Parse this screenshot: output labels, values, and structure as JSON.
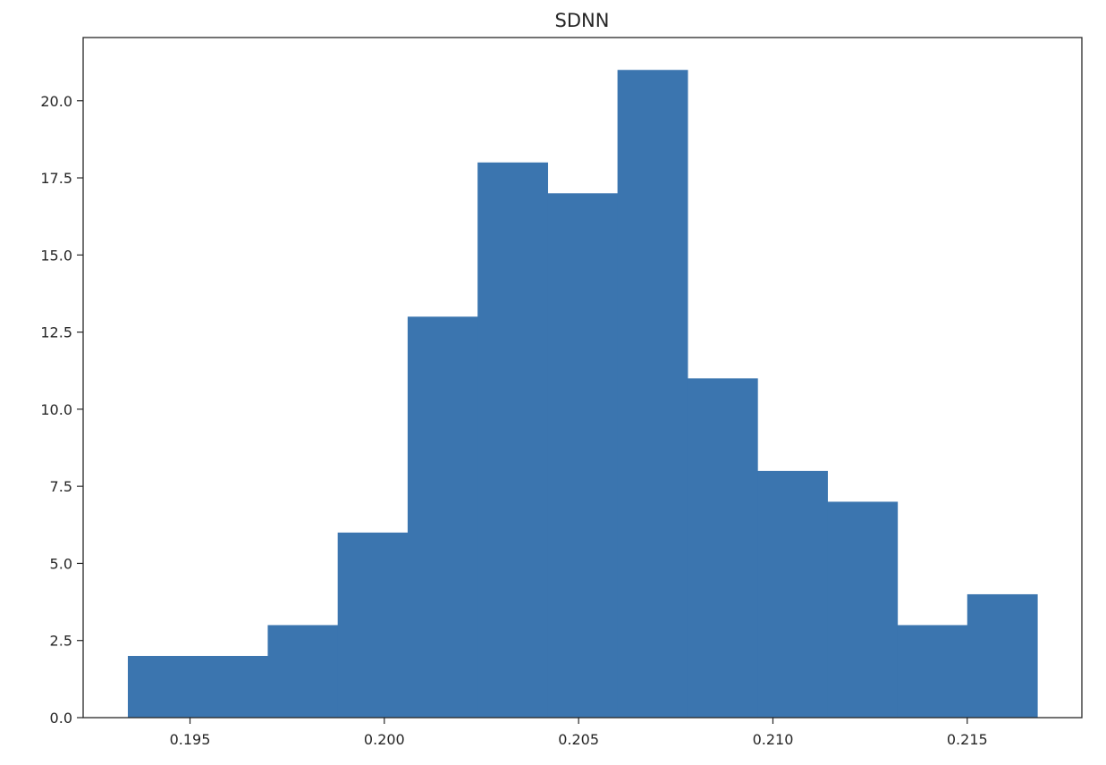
{
  "chart_data": {
    "type": "bar",
    "title": "SDNN",
    "xlabel": "",
    "ylabel": "",
    "bin_edges": [
      0.1934,
      0.1952,
      0.197,
      0.1988,
      0.2006,
      0.2024,
      0.2042,
      0.206,
      0.2078,
      0.2096,
      0.2114,
      0.2132,
      0.215,
      0.2168
    ],
    "counts": [
      2,
      2,
      3,
      6,
      13,
      18,
      17,
      21,
      11,
      8,
      7,
      3,
      4
    ],
    "xlim": [
      0.19225,
      0.21795
    ],
    "ylim": [
      0,
      22.05
    ],
    "xticks": [
      {
        "value": 0.195,
        "label": "0.195"
      },
      {
        "value": 0.2,
        "label": "0.200"
      },
      {
        "value": 0.205,
        "label": "0.205"
      },
      {
        "value": 0.21,
        "label": "0.210"
      },
      {
        "value": 0.215,
        "label": "0.215"
      }
    ],
    "yticks": [
      {
        "value": 0,
        "label": "0.0"
      },
      {
        "value": 2.5,
        "label": "2.5"
      },
      {
        "value": 5,
        "label": "5.0"
      },
      {
        "value": 7.5,
        "label": "7.5"
      },
      {
        "value": 10,
        "label": "10.0"
      },
      {
        "value": 12.5,
        "label": "12.5"
      },
      {
        "value": 15,
        "label": "15.0"
      },
      {
        "value": 17.5,
        "label": "17.5"
      },
      {
        "value": 20,
        "label": "20.0"
      }
    ],
    "bar_color": "#3b75af",
    "grid": false,
    "legend": "none"
  }
}
